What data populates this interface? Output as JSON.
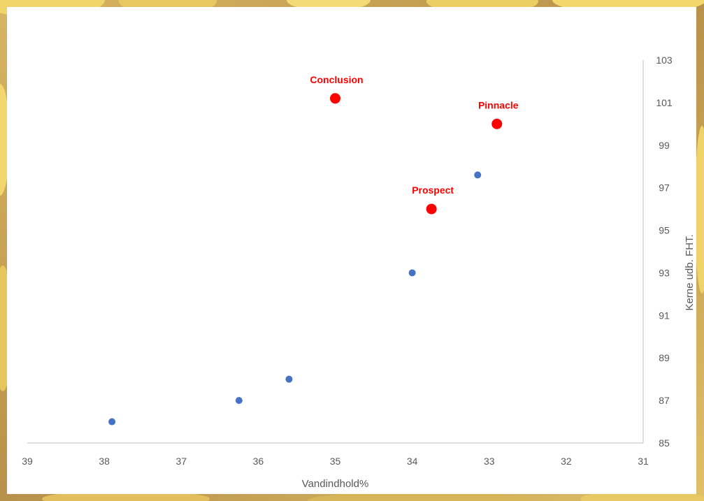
{
  "chart_data": {
    "type": "scatter",
    "title": "",
    "xlabel": "Vandindhold%",
    "ylabel": "Kerne udb. FHT.",
    "xlim": [
      39,
      31
    ],
    "ylim": [
      85,
      103
    ],
    "x_reversed": true,
    "y_axis_side": "right",
    "grid": false,
    "legend": "none",
    "x_ticks": [
      "39",
      "38",
      "37",
      "36",
      "35",
      "34",
      "33",
      "32",
      "31"
    ],
    "y_ticks": [
      "85",
      "87",
      "89",
      "91",
      "93",
      "95",
      "97",
      "99",
      "101",
      "103"
    ],
    "series": [
      {
        "color": "#4472c4",
        "points": [
          {
            "x": 37.9,
            "y": 86
          },
          {
            "x": 36.25,
            "y": 87
          },
          {
            "x": 35.6,
            "y": 88
          },
          {
            "x": 34.0,
            "y": 93
          },
          {
            "x": 33.15,
            "y": 97.6
          }
        ]
      },
      {
        "color": "#ff0000",
        "points": [
          {
            "x": 35.0,
            "y": 101.2,
            "label": "Conclusion"
          },
          {
            "x": 32.9,
            "y": 100.0,
            "label": "Pinnacle"
          },
          {
            "x": 33.75,
            "y": 96.0,
            "label": "Prospect"
          }
        ]
      }
    ]
  }
}
